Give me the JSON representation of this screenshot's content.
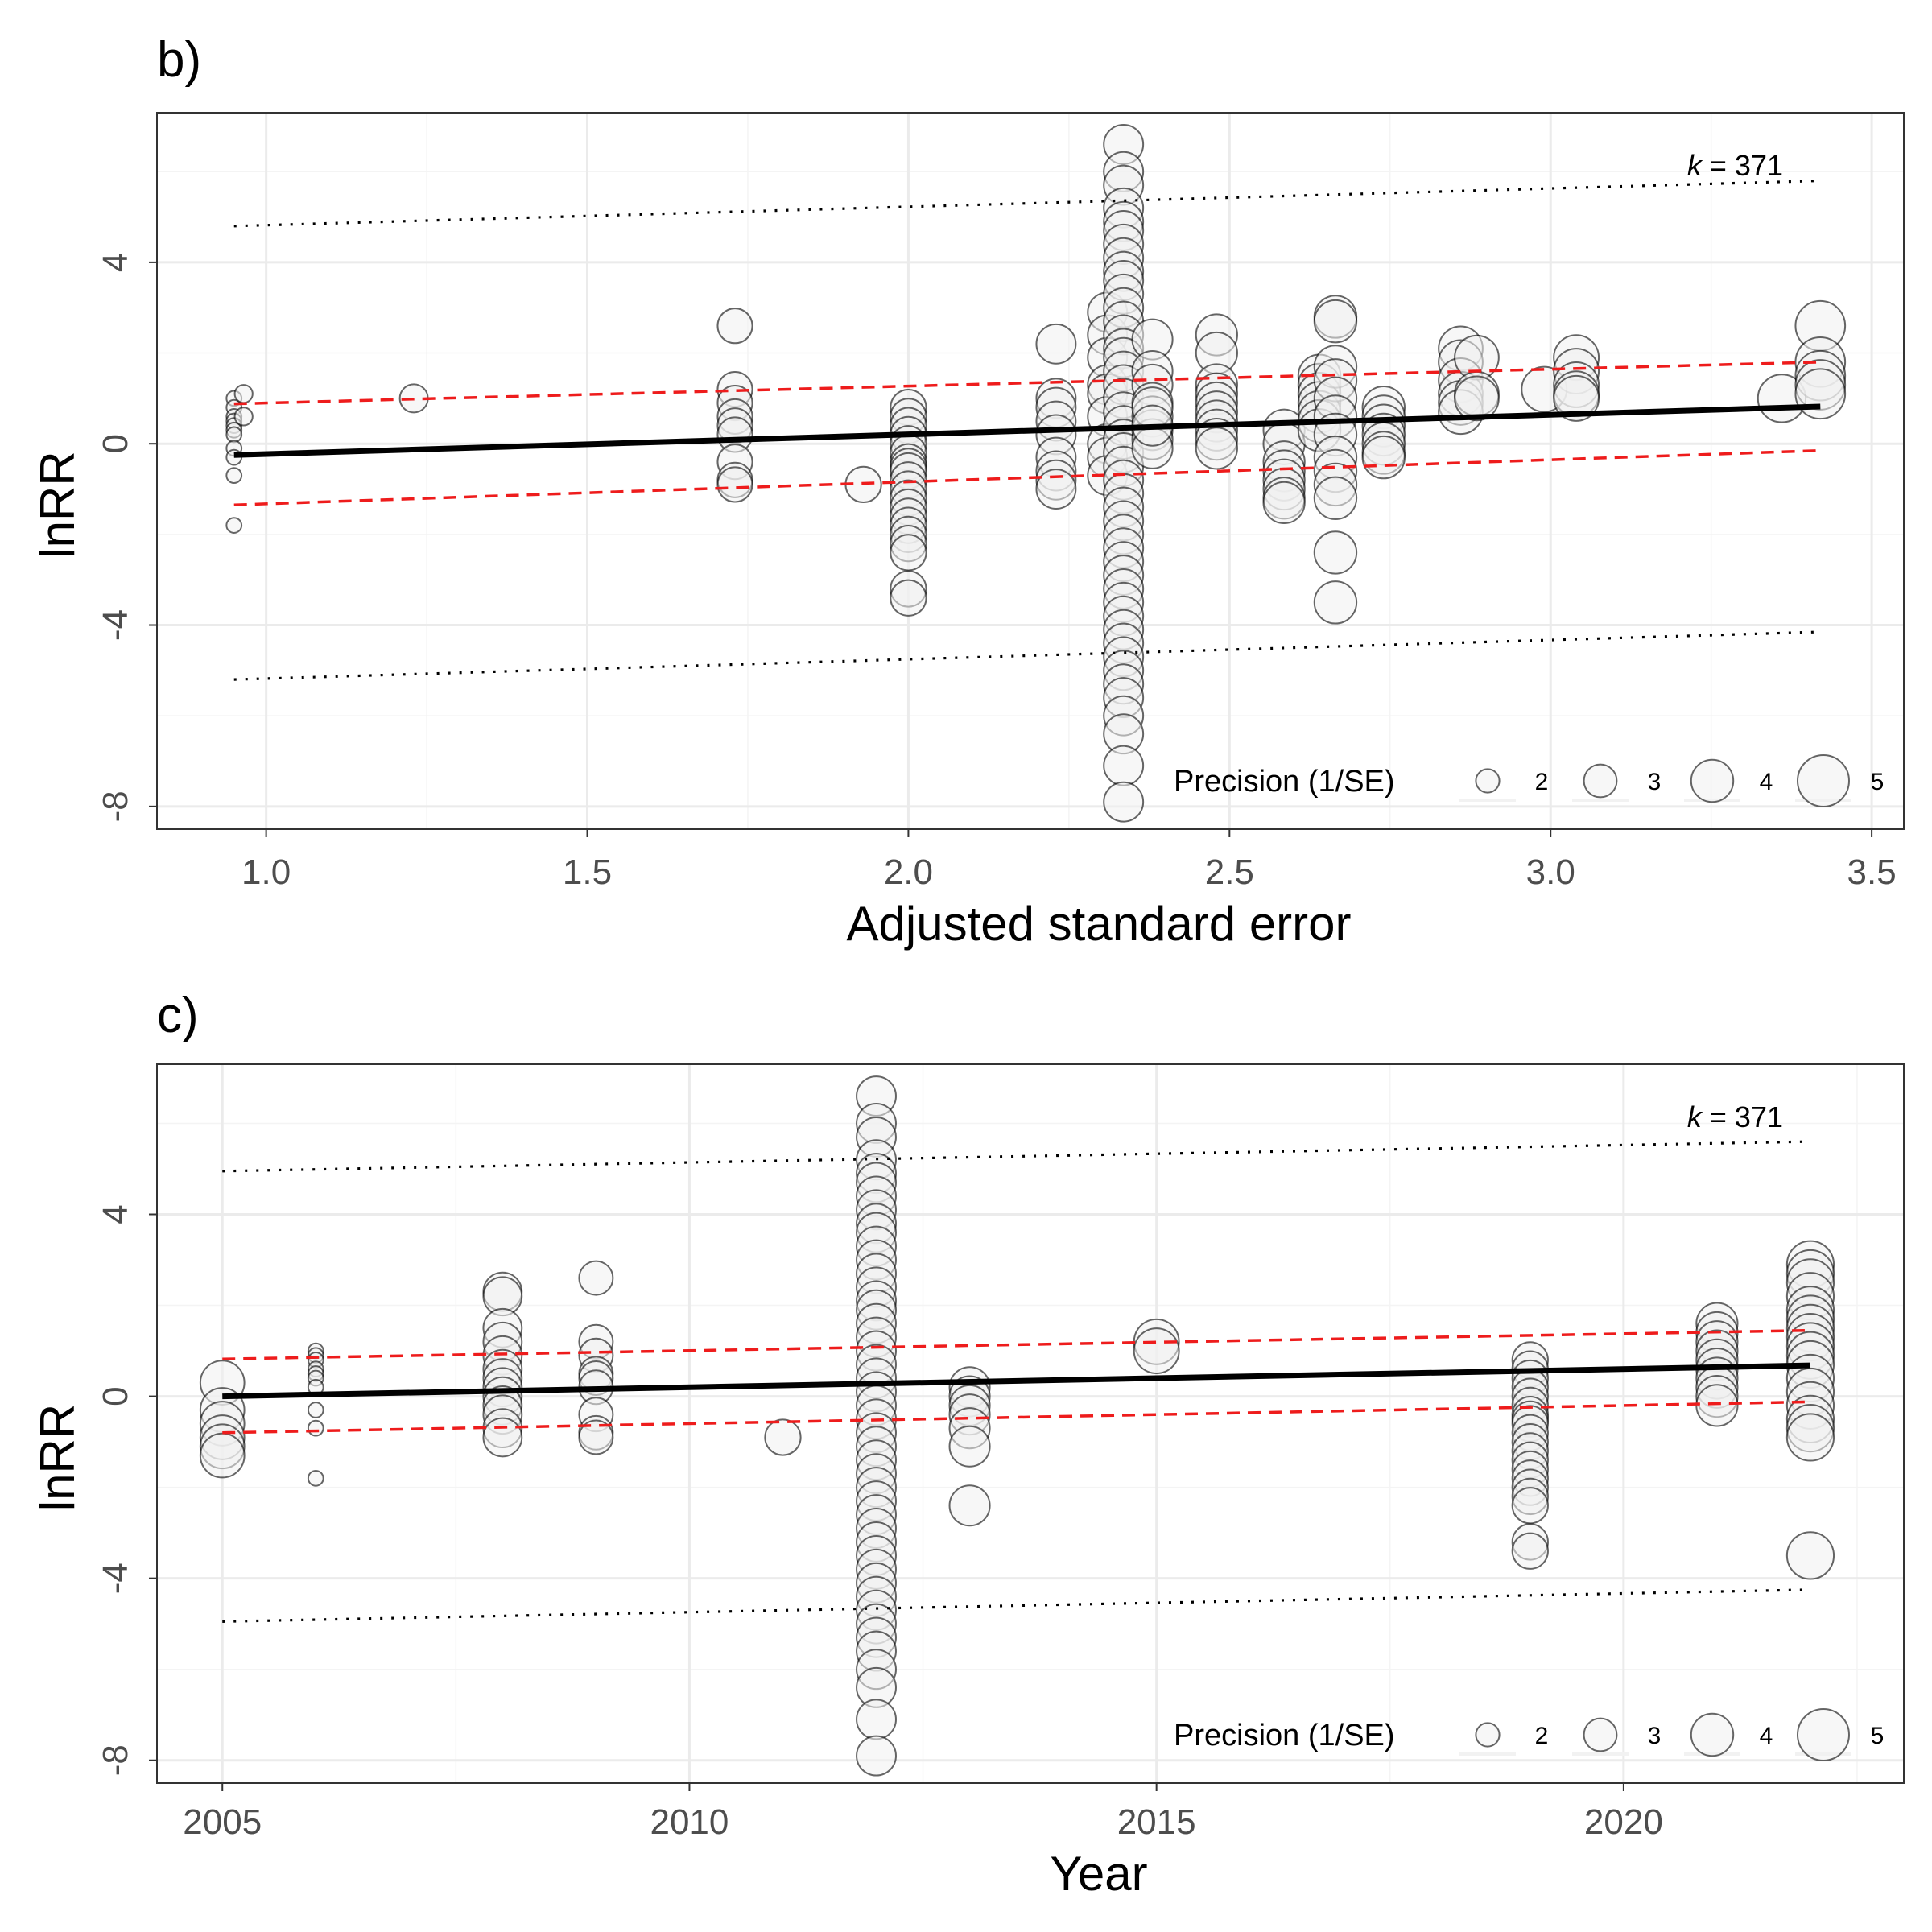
{
  "chart_data": [
    {
      "panel_label": "b)",
      "type": "scatter",
      "xlabel": "Adjusted standard error",
      "ylabel": "lnRR",
      "xlim": [
        0.83,
        3.55
      ],
      "ylim": [
        -8.5,
        7.3
      ],
      "xticks": [
        1.0,
        1.5,
        2.0,
        2.5,
        3.0,
        3.5
      ],
      "xtick_labels": [
        "1.0",
        "1.5",
        "2.0",
        "2.5",
        "3.0",
        "3.5"
      ],
      "yticks": [
        4,
        0,
        -4,
        -8
      ],
      "ytick_labels": [
        "4",
        "0",
        "-4",
        "-8"
      ],
      "grid": true,
      "annotation": {
        "k_symbol": "k",
        "k_rest": " = 371"
      },
      "legend": {
        "title": "Precision (1/SE)",
        "placement": "bottom-right",
        "sizes": [
          2,
          3,
          4,
          5
        ],
        "labels": [
          "2",
          "3",
          "4",
          "5"
        ]
      },
      "fit": {
        "x": [
          0.95,
          3.42
        ],
        "y": [
          -0.25,
          0.82
        ]
      },
      "ci_upper": {
        "x": [
          0.95,
          3.42
        ],
        "y": [
          0.88,
          1.8
        ]
      },
      "ci_lower": {
        "x": [
          0.95,
          3.42
        ],
        "y": [
          -1.35,
          -0.15
        ]
      },
      "pi_upper": {
        "x": [
          0.95,
          3.42
        ],
        "y": [
          4.8,
          5.8
        ]
      },
      "pi_lower": {
        "x": [
          0.95,
          3.42
        ],
        "y": [
          -5.2,
          -4.15
        ]
      },
      "groups": [
        {
          "x": 0.95,
          "size": 1.1,
          "y": [
            1.0,
            0.8,
            0.6,
            0.5,
            0.4,
            0.3,
            0.2,
            -0.1,
            -0.3,
            -0.7,
            -1.8
          ]
        },
        {
          "x": 0.965,
          "size": 1.4,
          "y": [
            1.1,
            0.6
          ]
        },
        {
          "x": 1.23,
          "size": 2.5,
          "y": [
            1.0
          ]
        },
        {
          "x": 1.73,
          "size": 3.2,
          "y": [
            2.6,
            1.2,
            0.9,
            0.6,
            0.4,
            0.2,
            -0.4,
            -0.8,
            -0.9
          ]
        },
        {
          "x": 1.93,
          "size": 3.3,
          "y": [
            -0.9
          ]
        },
        {
          "x": 2.0,
          "size": 3.3,
          "y": [
            0.8,
            0.6,
            0.4,
            0.2,
            0.0,
            -0.2,
            -0.4,
            -0.5,
            -0.6,
            -0.8,
            -1.0,
            -1.2,
            -1.4,
            -1.6,
            -1.8,
            -2.0,
            -2.2,
            -2.4,
            -3.2,
            -3.4
          ]
        },
        {
          "x": 2.23,
          "size": 3.7,
          "y": [
            2.2,
            1.0,
            0.8,
            0.5,
            0.2,
            -0.3,
            -0.6,
            -0.8,
            -1.0
          ]
        },
        {
          "x": 2.31,
          "size": 3.7,
          "y": [
            2.9,
            2.4,
            1.9,
            1.3,
            1.1,
            0.6,
            0.0,
            -0.3,
            -0.7
          ]
        },
        {
          "x": 2.335,
          "size": 3.7,
          "y": [
            6.6,
            6.0,
            5.7,
            5.2,
            4.9,
            4.7,
            4.4,
            4.1,
            3.8,
            3.6,
            3.3,
            3.0,
            2.7,
            2.4,
            2.1,
            1.9,
            1.6,
            1.3,
            1.0,
            0.7,
            0.4,
            0.1,
            -0.2,
            -0.5,
            -0.8,
            -1.1,
            -1.4,
            -1.7,
            -2.0,
            -2.3,
            -2.6,
            -2.9,
            -3.2,
            -3.5,
            -3.8,
            -4.1,
            -4.4,
            -4.7,
            -5.0,
            -5.3,
            -5.6,
            -6.0,
            -6.4,
            -7.1,
            -7.9
          ]
        },
        {
          "x": 2.38,
          "size": 3.8,
          "y": [
            2.3,
            1.6,
            1.3,
            0.9,
            0.6,
            0.3,
            0.1,
            -0.1,
            0.8,
            0.4
          ]
        },
        {
          "x": 2.48,
          "size": 3.9,
          "y": [
            2.4,
            2.0,
            1.3,
            1.1,
            0.9,
            0.7,
            0.5,
            0.3,
            0.1,
            -0.1
          ]
        },
        {
          "x": 2.585,
          "size": 3.9,
          "y": [
            0.3,
            0.0,
            -0.4,
            -0.6,
            -0.8,
            -1.0,
            -1.2,
            -1.3
          ]
        },
        {
          "x": 2.64,
          "size": 4.0,
          "y": [
            1.5,
            1.3,
            1.1,
            0.9,
            0.7,
            0.5,
            0.3
          ]
        },
        {
          "x": 2.665,
          "size": 4.0,
          "y": [
            2.8,
            2.7,
            1.7,
            1.4,
            1.0,
            0.6,
            0.2,
            -0.3,
            -0.6,
            -0.9,
            -1.2,
            -2.4,
            -3.5
          ]
        },
        {
          "x": 2.74,
          "size": 4.0,
          "y": [
            0.8,
            0.6,
            0.4,
            0.2,
            0.0,
            -0.2,
            -0.3
          ]
        },
        {
          "x": 2.86,
          "size": 4.2,
          "y": [
            2.1,
            1.8,
            1.4,
            1.1,
            0.9,
            0.7
          ]
        },
        {
          "x": 2.885,
          "size": 4.2,
          "y": [
            1.9,
            1.1,
            1.0
          ]
        },
        {
          "x": 2.99,
          "size": 4.3,
          "y": [
            1.2
          ]
        },
        {
          "x": 3.04,
          "size": 4.3,
          "y": [
            1.9,
            1.6,
            1.3,
            1.1,
            1.0
          ]
        },
        {
          "x": 3.36,
          "size": 4.6,
          "y": [
            1.0
          ]
        },
        {
          "x": 3.42,
          "size": 4.8,
          "y": [
            2.6,
            1.8,
            1.5,
            1.3,
            1.1
          ]
        }
      ]
    },
    {
      "panel_label": "c)",
      "type": "scatter",
      "xlabel": "Year",
      "ylabel": "lnRR",
      "xlim": [
        2004.3,
        2023.0
      ],
      "ylim": [
        -8.5,
        7.3
      ],
      "xticks": [
        2005,
        2010,
        2015,
        2020
      ],
      "xtick_labels": [
        "2005",
        "2010",
        "2015",
        "2020"
      ],
      "yticks": [
        4,
        0,
        -4,
        -8
      ],
      "ytick_labels": [
        "4",
        "0",
        "-4",
        "-8"
      ],
      "grid": true,
      "annotation": {
        "k_symbol": "k",
        "k_rest": " = 371"
      },
      "legend": {
        "title": "Precision (1/SE)",
        "placement": "bottom-right",
        "sizes": [
          2,
          3,
          4,
          5
        ],
        "labels": [
          "2",
          "3",
          "4",
          "5"
        ]
      },
      "fit": {
        "x": [
          2005,
          2022
        ],
        "y": [
          0.0,
          0.68
        ]
      },
      "ci_upper": {
        "x": [
          2005,
          2022
        ],
        "y": [
          0.82,
          1.45
        ]
      },
      "ci_lower": {
        "x": [
          2005,
          2022
        ],
        "y": [
          -0.8,
          -0.12
        ]
      },
      "pi_upper": {
        "x": [
          2005,
          2022
        ],
        "y": [
          4.95,
          5.6
        ]
      },
      "pi_lower": {
        "x": [
          2005,
          2022
        ],
        "y": [
          -4.95,
          -4.25
        ]
      },
      "groups": [
        {
          "x": 2005.0,
          "size": 4.2,
          "y": [
            0.3,
            -0.3,
            -0.6,
            -0.9,
            -1.1,
            -1.3
          ]
        },
        {
          "x": 2006.0,
          "size": 1.1,
          "y": [
            1.0,
            0.9,
            0.8,
            0.6,
            0.5,
            0.4,
            0.2,
            -0.3,
            -0.7,
            -1.8
          ]
        },
        {
          "x": 2008.0,
          "size": 3.6,
          "y": [
            2.3,
            2.2,
            1.5,
            1.2,
            0.9,
            0.6,
            0.4,
            0.2,
            0.0,
            -0.2,
            -0.4,
            -0.7,
            -0.9
          ]
        },
        {
          "x": 2009.0,
          "size": 3.1,
          "y": [
            2.6,
            1.2,
            0.9,
            0.5,
            0.4,
            0.2,
            -0.4,
            -0.8,
            -0.9
          ]
        },
        {
          "x": 2011.0,
          "size": 3.3,
          "y": [
            -0.9
          ]
        },
        {
          "x": 2012.0,
          "size": 3.7,
          "y": [
            6.6,
            6.0,
            5.7,
            5.2,
            4.9,
            4.7,
            4.4,
            4.1,
            3.8,
            3.6,
            3.3,
            3.0,
            2.7,
            2.4,
            2.1,
            1.9,
            1.6,
            1.3,
            1.0,
            0.7,
            0.4,
            0.1,
            -0.2,
            -0.5,
            -0.8,
            -1.1,
            -1.4,
            -1.7,
            -2.0,
            -2.3,
            -2.6,
            -2.9,
            -3.2,
            -3.5,
            -3.8,
            -4.1,
            -4.4,
            -4.7,
            -5.0,
            -5.3,
            -5.6,
            -6.0,
            -6.4,
            -7.1,
            -7.9
          ]
        },
        {
          "x": 2013.0,
          "size": 3.8,
          "y": [
            0.2,
            0.0,
            -0.2,
            -0.4,
            -0.7,
            -1.1,
            -2.4
          ]
        },
        {
          "x": 2015.0,
          "size": 4.3,
          "y": [
            1.2,
            1.0
          ]
        },
        {
          "x": 2019.0,
          "size": 3.3,
          "y": [
            0.8,
            0.6,
            0.4,
            0.2,
            0.0,
            -0.2,
            -0.4,
            -0.5,
            -0.6,
            -0.8,
            -1.0,
            -1.2,
            -1.4,
            -1.6,
            -1.8,
            -2.0,
            -2.2,
            -2.4,
            -3.2,
            -3.4
          ]
        },
        {
          "x": 2021.0,
          "size": 3.9,
          "y": [
            1.6,
            1.4,
            1.2,
            1.0,
            0.8,
            0.6,
            0.4,
            0.2,
            0.0,
            -0.2
          ]
        },
        {
          "x": 2022.0,
          "size": 4.5,
          "y": [
            2.9,
            2.7,
            2.5,
            2.2,
            1.9,
            1.7,
            1.5,
            1.3,
            1.1,
            0.9,
            0.7,
            0.4,
            0.1,
            -0.2,
            -0.5,
            -0.7,
            -0.9,
            -3.5
          ]
        }
      ]
    }
  ]
}
